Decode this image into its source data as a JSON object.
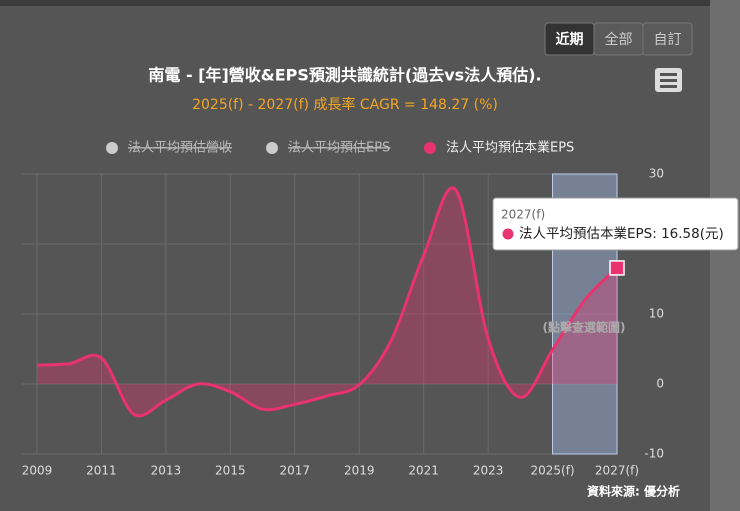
{
  "chart_data": {
    "type": "area",
    "buttons": [
      "近期",
      "全部",
      "自訂"
    ],
    "selected_button": 0,
    "title": "南電 - [年]營收&EPS預測共識統計(過去vs法人預估).",
    "subtitle": "2025(f) - 2027(f) 成長率 CAGR = 148.27 (%)",
    "legend": [
      {
        "name": "法人平均預估營收",
        "color": "#cccccc",
        "hidden": true
      },
      {
        "name": "法人平均預估EPS",
        "color": "#cccccc",
        "hidden": true
      },
      {
        "name": "法人平均預估本業EPS",
        "color": "#e8336f",
        "hidden": false
      }
    ],
    "categories": [
      "2009",
      null,
      "2011",
      null,
      "2013",
      null,
      "2015",
      null,
      "2017",
      null,
      "2019",
      null,
      "2021",
      null,
      "2023",
      null,
      "2025(f)",
      null,
      "2027(f)"
    ],
    "series": [
      {
        "name": "法人平均預估本業EPS",
        "color": "#e8336f",
        "values": [
          2.7,
          2.9,
          3.7,
          -4.3,
          -2.3,
          0.0,
          -1.1,
          -3.6,
          -2.9,
          -1.7,
          -0.1,
          6.3,
          18.4,
          27.7,
          6.5,
          -1.9,
          4.9,
          12.0,
          16.58
        ]
      }
    ],
    "ylim": [
      -10,
      30
    ],
    "yticks": [
      -10,
      0,
      10,
      20,
      30
    ],
    "grid": true,
    "highlight": {
      "from": 16,
      "to": 18
    },
    "annotation": "(點擊查選範圍)",
    "tooltip": {
      "title": "2027(f)",
      "text": "法人平均預估本業EPS: 16.58(元)"
    },
    "source": "資料來源: 優分析"
  }
}
